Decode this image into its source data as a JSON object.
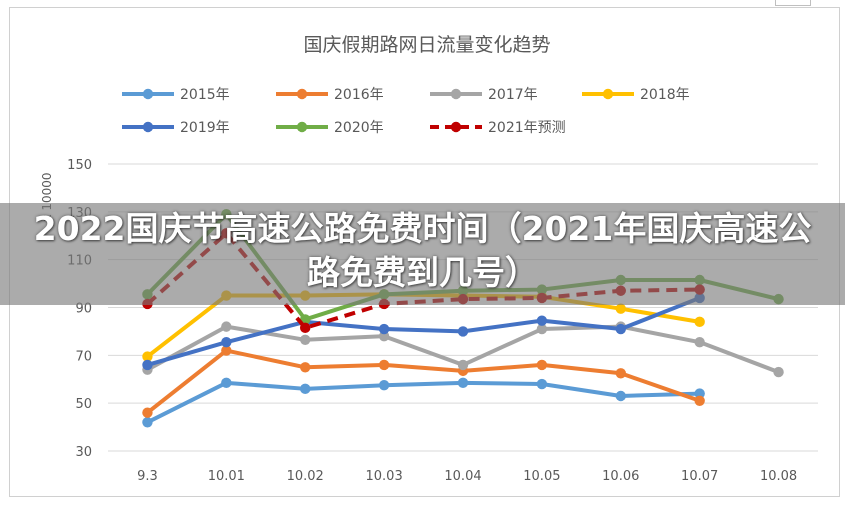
{
  "banner": {
    "headline": "2022国庆节高速公路免费时间（2021年国庆高速公路免费到几号）"
  },
  "chart_data": {
    "type": "line",
    "title": "国庆假期路网日流量变化趋势",
    "ylabel": "x 10000",
    "xlabel": "",
    "categories": [
      "9.3",
      "10.01",
      "10.02",
      "10.03",
      "10.04",
      "10.05",
      "10.06",
      "10.07",
      "10.08"
    ],
    "ylim": [
      30,
      150
    ],
    "yticks": [
      30,
      50,
      70,
      90,
      110,
      130,
      150
    ],
    "grid": true,
    "legend_position": "top",
    "series": [
      {
        "name": "2015年",
        "color": "#5b9bd5",
        "dashed": false,
        "values": [
          42,
          58.5,
          56,
          57.5,
          58.5,
          58,
          53,
          54,
          null
        ]
      },
      {
        "name": "2016年",
        "color": "#ed7d31",
        "dashed": false,
        "values": [
          46,
          72,
          65,
          66,
          63.5,
          66,
          62.5,
          51,
          null
        ]
      },
      {
        "name": "2017年",
        "color": "#a5a5a5",
        "dashed": false,
        "values": [
          64,
          82,
          76.5,
          78,
          66,
          81,
          82,
          75.5,
          63
        ]
      },
      {
        "name": "2018年",
        "color": "#ffc000",
        "dashed": false,
        "values": [
          69.5,
          95,
          95,
          95.5,
          95,
          94.5,
          89.5,
          84,
          null
        ]
      },
      {
        "name": "2019年",
        "color": "#4472c4",
        "dashed": false,
        "values": [
          66,
          75.5,
          84,
          81,
          80,
          84.5,
          81,
          94,
          null
        ]
      },
      {
        "name": "2020年",
        "color": "#70ad47",
        "dashed": false,
        "values": [
          95.5,
          129,
          85,
          95.5,
          97,
          97.5,
          101.5,
          101.5,
          93.5
        ]
      },
      {
        "name": "2021年预测",
        "color": "#c00000",
        "dashed": true,
        "values": [
          91.5,
          121,
          81.5,
          91.5,
          93.5,
          94,
          97,
          97.5,
          null
        ]
      }
    ]
  }
}
